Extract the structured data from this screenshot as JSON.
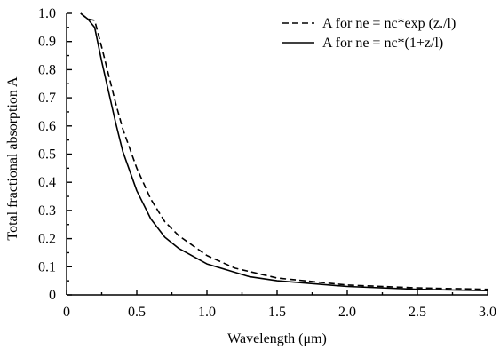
{
  "chart_data": {
    "type": "line",
    "xlabel": "Wavelength (μm)",
    "ylabel": "Total fractional absorption A",
    "xlim": [
      0,
      3.0
    ],
    "ylim": [
      0,
      1.0
    ],
    "x_ticks": [
      "0",
      "0.5",
      "1.0",
      "1.5",
      "2.0",
      "2.5",
      "3.0"
    ],
    "y_ticks": [
      "0",
      "0.1",
      "0.2",
      "0.3",
      "0.4",
      "0.5",
      "0.6",
      "0.7",
      "0.8",
      "0.9",
      "1.0"
    ],
    "grid": false,
    "legend_position": "top-right",
    "series": [
      {
        "name": "A for ne = nc*exp (z./l)",
        "style": "dashed",
        "color": "#000000",
        "x": [
          0.1,
          0.15,
          0.2,
          0.25,
          0.3,
          0.35,
          0.4,
          0.5,
          0.6,
          0.7,
          0.8,
          1.0,
          1.2,
          1.5,
          2.0,
          2.5,
          3.0
        ],
        "y": [
          1.0,
          0.98,
          0.975,
          0.88,
          0.78,
          0.68,
          0.59,
          0.45,
          0.34,
          0.26,
          0.21,
          0.14,
          0.095,
          0.06,
          0.035,
          0.025,
          0.02
        ]
      },
      {
        "name": "A for ne = nc*(1+z/l)",
        "style": "solid",
        "color": "#000000",
        "x": [
          0.1,
          0.15,
          0.2,
          0.25,
          0.3,
          0.35,
          0.4,
          0.5,
          0.6,
          0.7,
          0.8,
          1.0,
          1.3,
          1.5,
          2.0,
          2.5,
          3.0
        ],
        "y": [
          1.0,
          0.98,
          0.95,
          0.83,
          0.72,
          0.61,
          0.51,
          0.37,
          0.27,
          0.205,
          0.165,
          0.11,
          0.065,
          0.05,
          0.03,
          0.02,
          0.015
        ]
      }
    ]
  }
}
